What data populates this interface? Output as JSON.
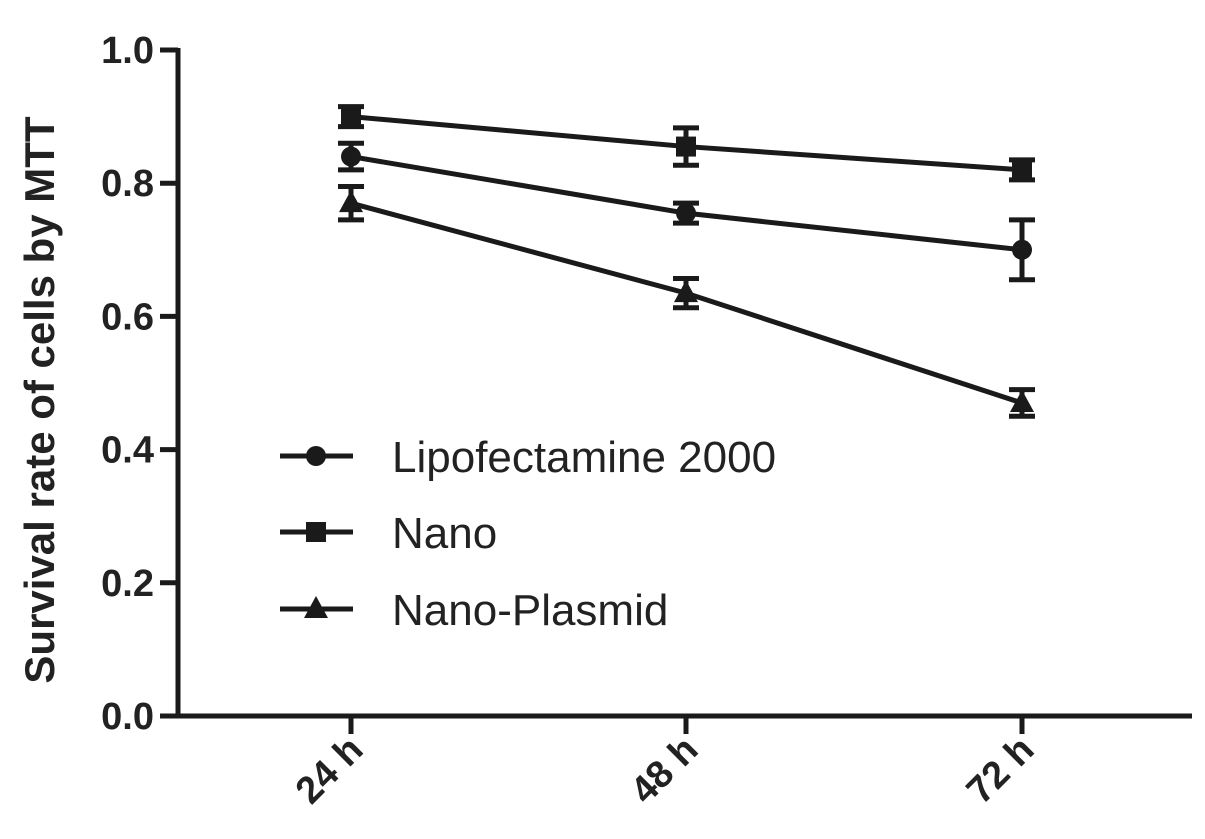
{
  "chart_data": {
    "type": "line",
    "title": "",
    "xlabel": "",
    "ylabel": "Survival rate of cells by MTT",
    "categories": [
      "24 h",
      "48 h",
      "72 h"
    ],
    "ylim": [
      0,
      1.0
    ],
    "yticks": [
      "0.0",
      "0.2",
      "0.4",
      "0.6",
      "0.8",
      "1.0"
    ],
    "grid": false,
    "legend": "center-left",
    "series": [
      {
        "name": "Lipofectamine 2000",
        "marker": "circle",
        "values": [
          0.84,
          0.755,
          0.7
        ],
        "errors": [
          0.02,
          0.015,
          0.045
        ]
      },
      {
        "name": "Nano",
        "marker": "square",
        "values": [
          0.9,
          0.855,
          0.82
        ],
        "errors": [
          0.015,
          0.028,
          0.015
        ]
      },
      {
        "name": "Nano-Plasmid",
        "marker": "triangle",
        "values": [
          0.77,
          0.635,
          0.47
        ],
        "errors": [
          0.025,
          0.022,
          0.02
        ]
      }
    ],
    "colors": {
      "line": "#1a1a1a",
      "text": "#222222"
    }
  }
}
